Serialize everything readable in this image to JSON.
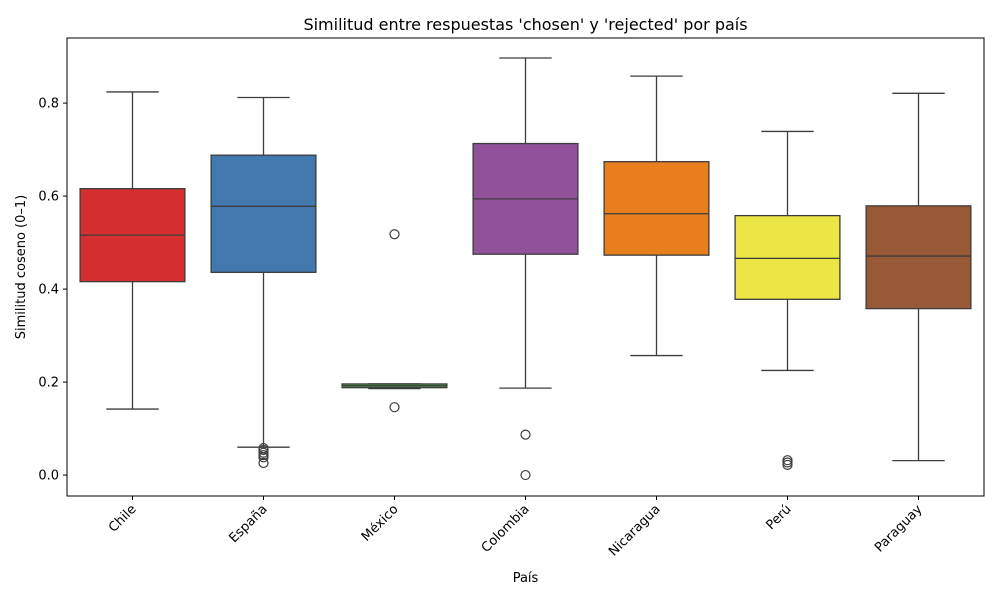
{
  "chart_data": {
    "type": "box",
    "title": "Similitud entre respuestas 'chosen' y 'rejected' por país",
    "xlabel": "País",
    "ylabel": "Similitud coseno (0–1)",
    "ylim": [
      -0.045,
      0.94
    ],
    "yticks": [
      0.0,
      0.2,
      0.4,
      0.6,
      0.8
    ],
    "ytick_labels": [
      "0.0",
      "0.2",
      "0.4",
      "0.6",
      "0.8"
    ],
    "grid": false,
    "legend": false,
    "categories": [
      "Chile",
      "España",
      "México",
      "Colombia",
      "Nicaragua",
      "Perú",
      "Paraguay"
    ],
    "boxes": [
      {
        "name": "Chile",
        "color": "#d62f2f",
        "whislo": 0.142,
        "q1": 0.416,
        "median": 0.516,
        "q3": 0.616,
        "whishi": 0.824,
        "fliers": []
      },
      {
        "name": "España",
        "color": "#4178ae",
        "whislo": 0.06,
        "q1": 0.436,
        "median": 0.578,
        "q3": 0.688,
        "whishi": 0.812,
        "fliers": [
          0.058,
          0.054,
          0.048,
          0.043,
          0.038,
          0.026
        ]
      },
      {
        "name": "México",
        "color": "#4aa34a",
        "whislo": 0.186,
        "q1": 0.188,
        "median": 0.192,
        "q3": 0.196,
        "whishi": 0.196,
        "fliers": [
          0.518,
          0.146
        ]
      },
      {
        "name": "Colombia",
        "color": "#91529a",
        "whislo": 0.187,
        "q1": 0.475,
        "median": 0.594,
        "q3": 0.713,
        "whishi": 0.897,
        "fliers": [
          0.087,
          0.0
        ]
      },
      {
        "name": "Nicaragua",
        "color": "#e87f1e",
        "whislo": 0.257,
        "q1": 0.473,
        "median": 0.562,
        "q3": 0.674,
        "whishi": 0.858,
        "fliers": []
      },
      {
        "name": "Perú",
        "color": "#ebe645",
        "whislo": 0.225,
        "q1": 0.378,
        "median": 0.466,
        "q3": 0.558,
        "whishi": 0.739,
        "fliers": [
          0.032,
          0.027,
          0.022
        ]
      },
      {
        "name": "Paraguay",
        "color": "#985a36",
        "whislo": 0.031,
        "q1": 0.358,
        "median": 0.471,
        "q3": 0.579,
        "whishi": 0.821,
        "fliers": []
      }
    ]
  }
}
